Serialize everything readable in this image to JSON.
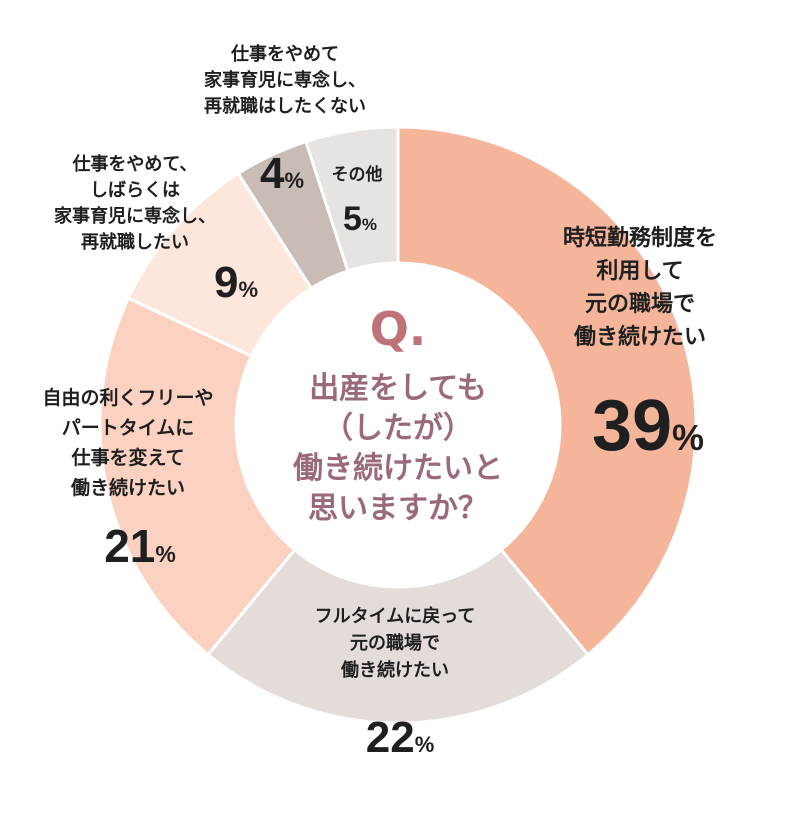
{
  "chart_data": {
    "type": "pie",
    "question": {
      "mark": "Q.",
      "lines": [
        "出産をしても",
        "（したが）",
        "働き続けたいと",
        "思いますか？"
      ]
    },
    "slices": [
      {
        "label_lines": [
          "時短勤務制度を",
          "利用して",
          "元の職場で",
          "働き続けたい"
        ],
        "value": 39,
        "unit": "%",
        "color": "#f5b59b"
      },
      {
        "label_lines": [
          "フルタイムに戻って",
          "元の職場で",
          "働き続けたい"
        ],
        "value": 22,
        "unit": "%",
        "color": "#e4dcd8"
      },
      {
        "label_lines": [
          "自由の利くフリーや",
          "パートタイムに",
          "仕事を変えて",
          "働き続けたい"
        ],
        "value": 21,
        "unit": "%",
        "color": "#fbd2c2"
      },
      {
        "label_lines": [
          "仕事をやめて、",
          "しばらくは",
          "家事育児に専念し、",
          "再就職したい"
        ],
        "value": 9,
        "unit": "%",
        "color": "#fde6dc"
      },
      {
        "label_lines": [
          "仕事をやめて",
          "家事育児に専念し、",
          "再就職はしたくない"
        ],
        "value": 4,
        "unit": "%",
        "color": "#c9bcb6"
      },
      {
        "label_lines": [
          "その他"
        ],
        "value": 5,
        "unit": "%",
        "color": "#e7e3e1"
      }
    ],
    "legend": "none"
  }
}
